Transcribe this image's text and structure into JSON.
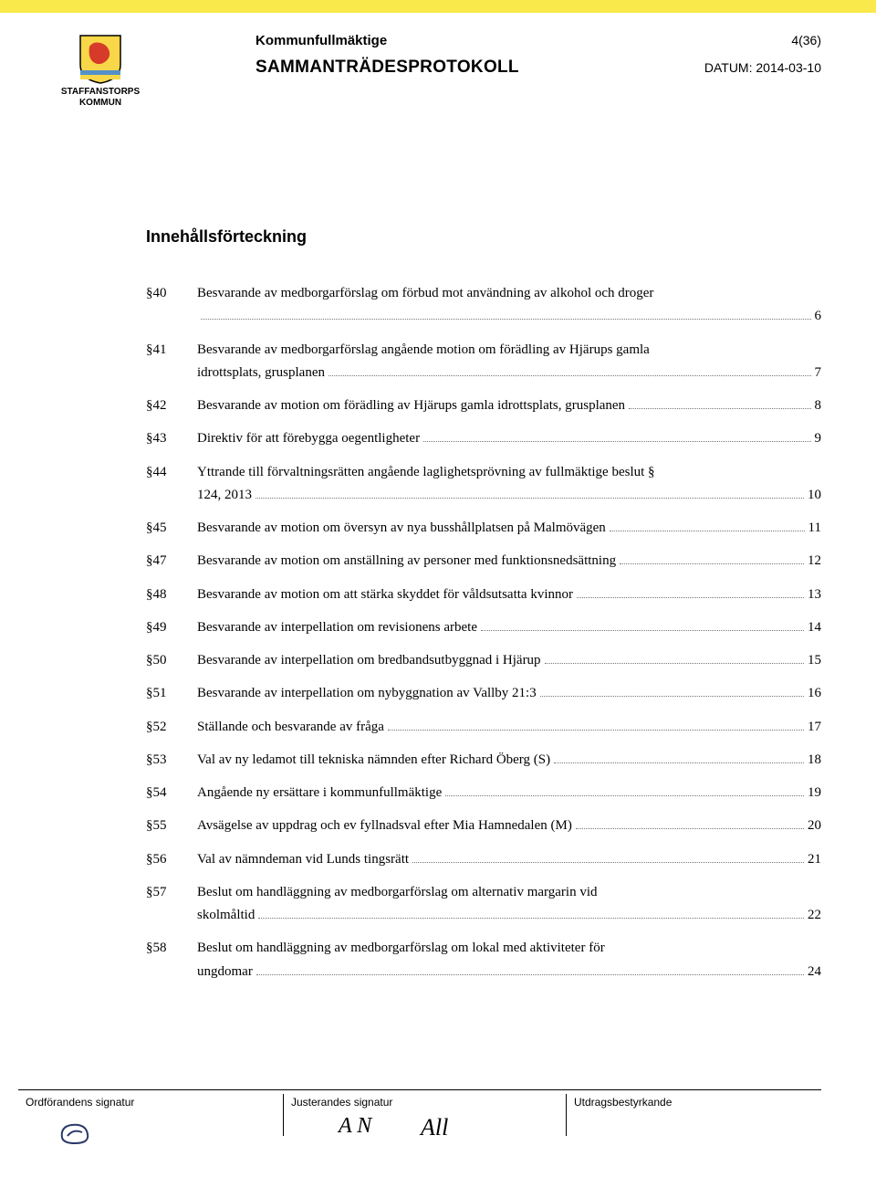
{
  "colors": {
    "yellow_bar": "#f9e94b",
    "shield_yellow": "#f8d748",
    "shield_red": "#d63b2a",
    "shield_blue": "#5491c8",
    "text": "#000000",
    "dots": "#777777"
  },
  "header": {
    "org_line1": "STAFFANSTORPS",
    "org_line2": "KOMMUN",
    "committee": "Kommunfullmäktige",
    "page_indicator": "4(36)",
    "doc_title": "SAMMANTRÄDESPROTOKOLL",
    "date_label": "DATUM: 2014-03-10"
  },
  "toc_heading": "Innehållsförteckning",
  "toc": [
    {
      "section": "§40",
      "wrap": "Besvarande av medborgarförslag om förbud mot användning av alkohol och droger",
      "tail": "",
      "page": "6"
    },
    {
      "section": "§41",
      "wrap": "Besvarande av medborgarförslag angående motion om förädling av Hjärups gamla",
      "tail": "idrottsplats, grusplanen",
      "page": "7"
    },
    {
      "section": "§42",
      "tail": "Besvarande av motion om förädling av Hjärups gamla idrottsplats, grusplanen",
      "page": "8"
    },
    {
      "section": "§43",
      "tail": "Direktiv för att förebygga oegentligheter",
      "page": "9"
    },
    {
      "section": "§44",
      "wrap": "Yttrande till förvaltningsrätten angående laglighetsprövning av fullmäktige beslut §",
      "tail": "124, 2013",
      "page": "10"
    },
    {
      "section": "§45",
      "tail": "Besvarande av motion om översyn av nya busshållplatsen på Malmövägen",
      "page": "11"
    },
    {
      "section": "§47",
      "tail": "Besvarande av motion om anställning av personer med funktionsnedsättning",
      "page": "12"
    },
    {
      "section": "§48",
      "tail": "Besvarande av motion om att stärka skyddet för våldsutsatta kvinnor",
      "page": "13"
    },
    {
      "section": "§49",
      "tail": "Besvarande av interpellation om revisionens arbete",
      "page": "14"
    },
    {
      "section": "§50",
      "tail": "Besvarande av interpellation om bredbandsutbyggnad i Hjärup",
      "page": "15"
    },
    {
      "section": "§51",
      "tail": "Besvarande av interpellation om nybyggnation av Vallby 21:3",
      "page": "16"
    },
    {
      "section": "§52",
      "tail": "Ställande och besvarande av fråga",
      "page": "17"
    },
    {
      "section": "§53",
      "tail": "Val av ny ledamot till tekniska nämnden efter Richard Öberg (S)",
      "page": "18"
    },
    {
      "section": "§54",
      "tail": "Angående ny ersättare i kommunfullmäktige",
      "page": "19"
    },
    {
      "section": "§55",
      "tail": "Avsägelse av uppdrag och ev fyllnadsval efter Mia Hamnedalen (M)",
      "page": "20"
    },
    {
      "section": "§56",
      "tail": "Val av nämndeman vid Lunds tingsrätt",
      "page": "21"
    },
    {
      "section": "§57",
      "wrap": "Beslut om handläggning av medborgarförslag om alternativ margarin vid",
      "tail": "skolmåltid",
      "page": "22"
    },
    {
      "section": "§58",
      "wrap": "Beslut om handläggning av medborgarförslag om lokal med aktiviteter för",
      "tail": "ungdomar",
      "page": "24"
    }
  ],
  "footer": {
    "col1": "Ordförandens signatur",
    "col2": "Justerandes signatur",
    "col3": "Utdragsbestyrkande",
    "sig2": "A N",
    "sig3": "All"
  }
}
